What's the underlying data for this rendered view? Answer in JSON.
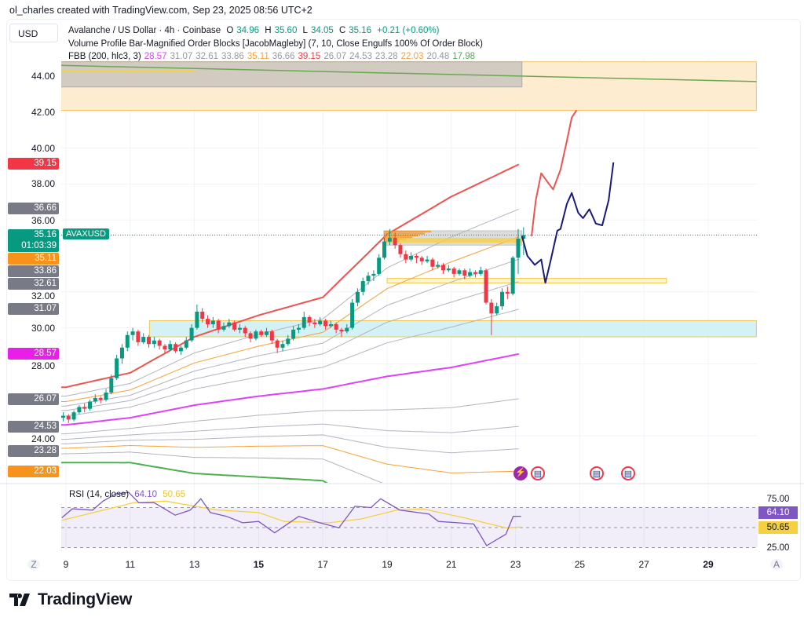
{
  "credit": "ol_charles created with TradingView.com, Sep 23, 2025 08:56 UTC+2",
  "currency_button": "USD",
  "legend": {
    "symbol_line": "Avalanche / US Dollar · 4h · Coinbase",
    "ohlc": [
      {
        "label": "O",
        "value": "34.96"
      },
      {
        "label": "H",
        "value": "35.60"
      },
      {
        "label": "L",
        "value": "34.05"
      },
      {
        "label": "C",
        "value": "35.16"
      }
    ],
    "change": "+0.21 (+0.60%)",
    "indicator_vp": "Volume Profile Bar-Magnified Order Blocks [JacobMagleby] (7, 10, Close Engulfs 100% Of Order Block)",
    "indicator_fbb": "FBB (200, hlc3, 3)",
    "fbb_values": [
      {
        "value": "28.57",
        "color": "#e040fb"
      },
      {
        "value": "31.07",
        "color": "#9598a1"
      },
      {
        "value": "32.61",
        "color": "#9598a1"
      },
      {
        "value": "33.86",
        "color": "#9598a1"
      },
      {
        "value": "35.11",
        "color": "#f7a13b"
      },
      {
        "value": "36.66",
        "color": "#9598a1"
      },
      {
        "value": "39.15",
        "color": "#f23645"
      },
      {
        "value": "26.07",
        "color": "#9598a1"
      },
      {
        "value": "24.53",
        "color": "#9598a1"
      },
      {
        "value": "23.28",
        "color": "#9598a1"
      },
      {
        "value": "22.03",
        "color": "#f7a13b"
      },
      {
        "value": "20.48",
        "color": "#9598a1"
      },
      {
        "value": "17.98",
        "color": "#4caf50"
      }
    ]
  },
  "price_tags": [
    {
      "value": "39.15",
      "color": "#f23645"
    },
    {
      "value": "36.66",
      "color": "#787b86"
    },
    {
      "value": "35.11",
      "color": "#f7931a"
    },
    {
      "value": "33.86",
      "color": "#787b86"
    },
    {
      "value": "32.61",
      "color": "#787b86"
    },
    {
      "value": "31.07",
      "color": "#787b86"
    },
    {
      "value": "28.57",
      "color": "#e91ee9"
    },
    {
      "value": "26.07",
      "color": "#787b86"
    },
    {
      "value": "24.53",
      "color": "#787b86"
    },
    {
      "value": "23.28",
      "color": "#787b86"
    },
    {
      "value": "22.03",
      "color": "#f7931a"
    }
  ],
  "last_price": {
    "value": "35.16",
    "countdown": "01:03:39",
    "symbol": "AVAXUSD",
    "color": "#089981"
  },
  "time_axis": {
    "left_button": "Z",
    "right_button": "A"
  },
  "rsi": {
    "title": "RSI (14, close)",
    "value": "64.10",
    "ma_value": "50.65",
    "value_color": "#7e57c2",
    "ma_color": "#f5d142",
    "levels": [
      "75.00",
      "25.00"
    ]
  },
  "brand": "TradingView",
  "chart_data": [
    {
      "type": "candlestick",
      "title": "Avalanche / US Dollar · 4h · Coinbase",
      "ylim": [
        21.4,
        45.0
      ],
      "xlim_days_of_sep_2025": [
        8.8,
        30.5
      ],
      "grid": true,
      "y_ticks": [
        "44.00",
        "42.00",
        "40.00",
        "38.00",
        "36.00",
        "32.00",
        "30.00",
        "28.00",
        "24.00"
      ],
      "y_tick_values": [
        44,
        42,
        40,
        38,
        36,
        32,
        30,
        28,
        24
      ],
      "x_ticks": [
        {
          "label": "9",
          "day": 9
        },
        {
          "label": "11",
          "day": 11
        },
        {
          "label": "13",
          "day": 13
        },
        {
          "label": "15",
          "day": 15,
          "bold": true
        },
        {
          "label": "17",
          "day": 17
        },
        {
          "label": "19",
          "day": 19
        },
        {
          "label": "21",
          "day": 21
        },
        {
          "label": "23",
          "day": 23
        },
        {
          "label": "25",
          "day": 25
        },
        {
          "label": "27",
          "day": 27
        },
        {
          "label": "29",
          "day": 29,
          "bold": true
        }
      ],
      "candle_start_day": 8.83,
      "candle_interval_days": 0.1667,
      "up_color": "#089981",
      "down_color": "#f23645",
      "ohlc": [
        [
          25.0,
          25.3,
          24.8,
          25.1
        ],
        [
          25.1,
          25.2,
          24.7,
          24.9
        ],
        [
          24.9,
          25.4,
          24.8,
          25.3
        ],
        [
          25.3,
          25.7,
          25.2,
          25.6
        ],
        [
          25.6,
          25.8,
          25.3,
          25.5
        ],
        [
          25.5,
          26.0,
          25.4,
          25.9
        ],
        [
          25.9,
          26.3,
          25.8,
          26.1
        ],
        [
          26.1,
          26.2,
          25.8,
          26.0
        ],
        [
          26.0,
          26.6,
          25.9,
          26.4
        ],
        [
          26.4,
          27.4,
          26.3,
          27.2
        ],
        [
          27.2,
          28.5,
          27.1,
          28.3
        ],
        [
          28.3,
          29.1,
          28.0,
          28.9
        ],
        [
          28.9,
          29.8,
          28.7,
          29.6
        ],
        [
          29.6,
          30.0,
          29.3,
          29.8
        ],
        [
          29.8,
          29.9,
          29.0,
          29.2
        ],
        [
          29.2,
          29.7,
          29.1,
          29.5
        ],
        [
          29.5,
          29.6,
          28.9,
          29.1
        ],
        [
          29.1,
          29.5,
          28.9,
          29.3
        ],
        [
          29.3,
          29.4,
          28.8,
          29.0
        ],
        [
          29.0,
          29.1,
          28.6,
          28.8
        ],
        [
          28.8,
          29.3,
          28.7,
          29.1
        ],
        [
          29.1,
          29.2,
          28.6,
          28.7
        ],
        [
          28.7,
          29.0,
          28.5,
          28.9
        ],
        [
          28.9,
          29.5,
          28.8,
          29.3
        ],
        [
          29.3,
          30.2,
          29.2,
          30.0
        ],
        [
          30.0,
          31.3,
          29.9,
          30.9
        ],
        [
          30.9,
          31.1,
          30.3,
          30.5
        ],
        [
          30.5,
          30.7,
          30.0,
          30.2
        ],
        [
          30.2,
          30.6,
          30.0,
          30.4
        ],
        [
          30.4,
          30.5,
          29.7,
          29.9
        ],
        [
          29.9,
          30.3,
          29.8,
          30.1
        ],
        [
          30.1,
          30.5,
          30.0,
          30.3
        ],
        [
          30.3,
          30.4,
          29.8,
          29.9
        ],
        [
          29.9,
          30.2,
          29.7,
          30.0
        ],
        [
          30.0,
          30.1,
          29.5,
          29.7
        ],
        [
          29.7,
          29.8,
          29.2,
          29.4
        ],
        [
          29.4,
          29.9,
          29.3,
          29.8
        ],
        [
          29.8,
          29.9,
          29.5,
          29.6
        ],
        [
          29.6,
          30.0,
          29.5,
          29.8
        ],
        [
          29.8,
          29.9,
          29.1,
          29.3
        ],
        [
          29.3,
          29.4,
          28.6,
          28.9
        ],
        [
          28.9,
          29.3,
          28.7,
          29.1
        ],
        [
          29.1,
          29.6,
          29.0,
          29.4
        ],
        [
          29.4,
          30.1,
          29.3,
          29.9
        ],
        [
          29.9,
          30.2,
          29.7,
          30.0
        ],
        [
          30.0,
          30.9,
          29.9,
          30.6
        ],
        [
          30.6,
          30.7,
          30.1,
          30.3
        ],
        [
          30.3,
          30.5,
          30.0,
          30.2
        ],
        [
          30.2,
          30.6,
          30.1,
          30.4
        ],
        [
          30.4,
          30.5,
          29.9,
          30.1
        ],
        [
          30.1,
          30.4,
          30.0,
          30.2
        ],
        [
          30.2,
          30.3,
          29.7,
          29.9
        ],
        [
          29.9,
          30.0,
          29.5,
          29.8
        ],
        [
          29.8,
          30.2,
          29.7,
          30.0
        ],
        [
          30.0,
          31.6,
          29.9,
          31.4
        ],
        [
          31.4,
          32.2,
          31.2,
          32.0
        ],
        [
          32.0,
          32.8,
          31.8,
          32.6
        ],
        [
          32.6,
          33.1,
          32.4,
          32.9
        ],
        [
          32.9,
          33.2,
          32.6,
          33.0
        ],
        [
          33.0,
          34.1,
          32.9,
          33.9
        ],
        [
          33.9,
          35.0,
          33.8,
          34.8
        ],
        [
          34.8,
          35.5,
          34.6,
          35.0
        ],
        [
          35.0,
          35.3,
          34.4,
          34.6
        ],
        [
          34.6,
          34.7,
          33.9,
          34.1
        ],
        [
          34.1,
          34.3,
          33.6,
          33.8
        ],
        [
          33.8,
          34.2,
          33.7,
          34.0
        ],
        [
          34.0,
          34.1,
          33.6,
          33.9
        ],
        [
          33.9,
          34.0,
          33.5,
          33.7
        ],
        [
          33.7,
          34.0,
          33.6,
          33.8
        ],
        [
          33.8,
          33.9,
          33.2,
          33.4
        ],
        [
          33.4,
          33.7,
          33.3,
          33.5
        ],
        [
          33.5,
          33.6,
          33.0,
          33.2
        ],
        [
          33.2,
          33.5,
          33.1,
          33.3
        ],
        [
          33.3,
          33.4,
          32.8,
          33.0
        ],
        [
          33.0,
          33.3,
          32.9,
          33.2
        ],
        [
          33.2,
          33.3,
          32.7,
          32.9
        ],
        [
          32.9,
          33.3,
          32.8,
          33.1
        ],
        [
          33.1,
          33.2,
          32.8,
          33.0
        ],
        [
          33.0,
          33.4,
          32.9,
          33.2
        ],
        [
          33.2,
          33.3,
          31.3,
          31.4
        ],
        [
          31.4,
          31.6,
          29.6,
          30.8
        ],
        [
          30.8,
          31.4,
          30.7,
          31.2
        ],
        [
          31.2,
          32.2,
          31.0,
          32.0
        ],
        [
          32.0,
          32.3,
          31.6,
          31.9
        ],
        [
          31.9,
          34.0,
          31.8,
          33.9
        ],
        [
          33.9,
          35.5,
          33.0,
          34.96
        ],
        [
          34.96,
          35.6,
          34.05,
          35.16
        ]
      ],
      "fbb": {
        "days": [
          9,
          11,
          13,
          15,
          17,
          19,
          21,
          23.17
        ],
        "basis": [
          24.6,
          25.0,
          25.7,
          26.2,
          26.6,
          27.3,
          27.8,
          28.57
        ],
        "upper": [
          26.7,
          27.5,
          29.5,
          30.7,
          31.7,
          35.2,
          37.3,
          39.15
        ],
        "levels": [
          {
            "f": 1,
            "color": "#ef5350",
            "width": 2
          },
          {
            "f": 0.764,
            "color": "#b2b5be",
            "width": 1
          },
          {
            "f": 0.618,
            "color": "#f7a13b",
            "width": 1
          },
          {
            "f": 0.5,
            "color": "#b2b5be",
            "width": 1
          },
          {
            "f": 0.382,
            "color": "#b2b5be",
            "width": 1
          },
          {
            "f": 0.236,
            "color": "#b2b5be",
            "width": 1
          },
          {
            "f": 0,
            "color": "#e040fb",
            "width": 2
          },
          {
            "f": -0.236,
            "color": "#b2b5be",
            "width": 1
          },
          {
            "f": -0.382,
            "color": "#b2b5be",
            "width": 1
          },
          {
            "f": -0.5,
            "color": "#b2b5be",
            "width": 1
          },
          {
            "f": -0.618,
            "color": "#f7a13b",
            "width": 1
          },
          {
            "f": -0.764,
            "color": "#b2b5be",
            "width": 1
          },
          {
            "f": -1,
            "color": "#4caf50",
            "width": 2
          }
        ]
      },
      "zones": [
        {
          "name": "supply-zone",
          "from_day": 8.8,
          "to_day": 30.5,
          "low": 42.1,
          "high": 44.8,
          "fill": "#fde9c8",
          "stroke": "#f5c56b"
        },
        {
          "name": "volume-profile-box-top",
          "from_day": 8.8,
          "to_day": 23.2,
          "low": 43.4,
          "high": 44.8,
          "fill": "#c9c5bf",
          "stroke": "#b0aca6"
        },
        {
          "name": "demand-zone",
          "from_day": 11.6,
          "to_day": 30.5,
          "low": 29.5,
          "high": 30.4,
          "fill": "#cdeff3",
          "stroke": "#f0c64a"
        },
        {
          "name": "support-line-zone",
          "from_day": 19.0,
          "to_day": 27.7,
          "low": 32.5,
          "high": 32.75,
          "fill": "#fff3c4",
          "stroke": "#f0c64a"
        },
        {
          "name": "volume-profile-box-recent",
          "from_day": 18.9,
          "to_day": 23.2,
          "low": 34.6,
          "high": 35.4,
          "fill": "#d6d6d6",
          "stroke": "#c4c4c4"
        }
      ],
      "trend_line": {
        "color": "#6aa84f",
        "points": [
          [
            8.8,
            44.6
          ],
          [
            30.5,
            43.7
          ]
        ]
      },
      "projection_red": {
        "color": "#ef5350",
        "points": [
          [
            23.5,
            35.1
          ],
          [
            23.63,
            37.1
          ],
          [
            23.8,
            38.6
          ],
          [
            24.0,
            38.1
          ],
          [
            24.17,
            37.7
          ],
          [
            24.4,
            38.8
          ],
          [
            24.6,
            40.4
          ],
          [
            24.75,
            41.7
          ],
          [
            24.9,
            42.1
          ]
        ]
      },
      "projection_blue": {
        "color": "#1a1a7e",
        "points": [
          [
            23.2,
            35.1
          ],
          [
            23.37,
            34.0
          ],
          [
            23.6,
            33.5
          ],
          [
            23.8,
            33.8
          ],
          [
            23.93,
            32.5
          ],
          [
            24.1,
            33.8
          ],
          [
            24.3,
            35.4
          ],
          [
            24.4,
            35.5
          ],
          [
            24.6,
            36.9
          ],
          [
            24.75,
            37.5
          ],
          [
            24.95,
            36.4
          ],
          [
            25.1,
            36.1
          ],
          [
            25.3,
            36.6
          ],
          [
            25.5,
            35.8
          ],
          [
            25.7,
            35.7
          ],
          [
            25.9,
            37.1
          ],
          [
            26.05,
            39.2
          ]
        ]
      }
    },
    {
      "type": "line",
      "title": "RSI (14, close)",
      "ylim": [
        25,
        100
      ],
      "levels": [
        75,
        50,
        25
      ],
      "series": [
        {
          "name": "RSI",
          "color": "#7e57c2",
          "x": [
            8.87,
            9.2,
            9.83,
            10.15,
            10.55,
            10.95,
            11.27,
            11.75,
            12.4,
            12.87,
            13.2,
            13.5,
            14,
            14.5,
            15,
            15.5,
            16.25,
            16.9,
            17.5,
            18,
            18.5,
            18.8,
            19.4,
            20.3,
            20.6,
            21.2,
            21.7,
            22.1,
            22.7,
            22.93,
            23.17
          ],
          "y": [
            62.3,
            73.4,
            71.8,
            82.9,
            92,
            94,
            81,
            81,
            65.5,
            71.8,
            86,
            68.7,
            64,
            56,
            57.6,
            43.4,
            64,
            56,
            49.7,
            76.6,
            75,
            86,
            71.8,
            67,
            57.6,
            56,
            54.4,
            27.5,
            41.8,
            64,
            64.1
          ]
        },
        {
          "name": "MA",
          "color": "#f5d142",
          "x": [
            8.87,
            11.1,
            12.1,
            13.7,
            15,
            15.8,
            17.2,
            18.2,
            19.3,
            20.1,
            21.4,
            22.7,
            23.17
          ],
          "y": [
            59,
            81,
            83,
            72,
            68.7,
            57.6,
            56,
            60.8,
            71.8,
            73.4,
            62.3,
            49.7,
            50.65
          ]
        }
      ]
    }
  ]
}
